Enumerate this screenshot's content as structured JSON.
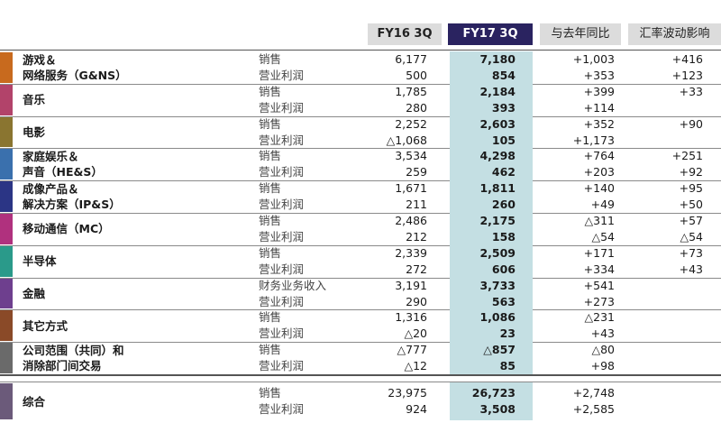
{
  "headers": {
    "fy16": "FY16 3Q",
    "fy17": "FY17 3Q",
    "yoy": "与去年同比",
    "fx": "汇率波动影响"
  },
  "segments": [
    {
      "name": "游戏＆\n网络服务（G&NS）",
      "color": "#c86a1e",
      "rows": [
        {
          "metric": "销售",
          "fy16": "6,177",
          "fy17": "7,180",
          "yoy": "+1,003",
          "fx": "+416"
        },
        {
          "metric": "营业利润",
          "fy16": "500",
          "fy17": "854",
          "yoy": "+353",
          "fx": "+123"
        }
      ]
    },
    {
      "name": "音乐",
      "color": "#b2436a",
      "rows": [
        {
          "metric": "销售",
          "fy16": "1,785",
          "fy17": "2,184",
          "yoy": "+399",
          "fx": "+33"
        },
        {
          "metric": "营业利润",
          "fy16": "280",
          "fy17": "393",
          "yoy": "+114",
          "fx": ""
        }
      ]
    },
    {
      "name": "电影",
      "color": "#8a7530",
      "rows": [
        {
          "metric": "销售",
          "fy16": "2,252",
          "fy17": "2,603",
          "yoy": "+352",
          "fx": "+90"
        },
        {
          "metric": "营业利润",
          "fy16": "△1,068",
          "fy17": "105",
          "yoy": "+1,173",
          "fx": ""
        }
      ]
    },
    {
      "name": "家庭娱乐＆\n声音（HE&S）",
      "color": "#3a70ad",
      "rows": [
        {
          "metric": "销售",
          "fy16": "3,534",
          "fy17": "4,298",
          "yoy": "+764",
          "fx": "+251"
        },
        {
          "metric": "营业利润",
          "fy16": "259",
          "fy17": "462",
          "yoy": "+203",
          "fx": "+92"
        }
      ]
    },
    {
      "name": "成像产品＆\n解决方案（IP&S）",
      "color": "#2b3585",
      "rows": [
        {
          "metric": "销售",
          "fy16": "1,671",
          "fy17": "1,811",
          "yoy": "+140",
          "fx": "+95"
        },
        {
          "metric": "营业利润",
          "fy16": "211",
          "fy17": "260",
          "yoy": "+49",
          "fx": "+50"
        }
      ]
    },
    {
      "name": "移动通信（MC）",
      "color": "#b0317e",
      "rows": [
        {
          "metric": "销售",
          "fy16": "2,486",
          "fy17": "2,175",
          "yoy": "△311",
          "fx": "+57"
        },
        {
          "metric": "营业利润",
          "fy16": "212",
          "fy17": "158",
          "yoy": "△54",
          "fx": "△54"
        }
      ]
    },
    {
      "name": "半导体",
      "color": "#2a9a8a",
      "rows": [
        {
          "metric": "销售",
          "fy16": "2,339",
          "fy17": "2,509",
          "yoy": "+171",
          "fx": "+73"
        },
        {
          "metric": "营业利润",
          "fy16": "272",
          "fy17": "606",
          "yoy": "+334",
          "fx": "+43"
        }
      ]
    },
    {
      "name": "金融",
      "color": "#6e3f8e",
      "rows": [
        {
          "metric": "财务业务收入",
          "fy16": "3,191",
          "fy17": "3,733",
          "yoy": "+541",
          "fx": ""
        },
        {
          "metric": "营业利润",
          "fy16": "290",
          "fy17": "563",
          "yoy": "+273",
          "fx": ""
        }
      ]
    },
    {
      "name": "其它方式",
      "color": "#8a4a28",
      "rows": [
        {
          "metric": "销售",
          "fy16": "1,316",
          "fy17": "1,086",
          "yoy": "△231",
          "fx": ""
        },
        {
          "metric": "营业利润",
          "fy16": "△20",
          "fy17": "23",
          "yoy": "+43",
          "fx": ""
        }
      ]
    },
    {
      "name": "公司范围（共同）和\n消除部门间交易",
      "color": "#6a6a6a",
      "rows": [
        {
          "metric": "销售",
          "fy16": "△777",
          "fy17": "△857",
          "yoy": "△80",
          "fx": ""
        },
        {
          "metric": "营业利润",
          "fy16": "△12",
          "fy17": "85",
          "yoy": "+98",
          "fx": ""
        }
      ]
    },
    {
      "name": "综合",
      "color": "#6b5a7a",
      "rows": [
        {
          "metric": "销售",
          "fy16": "23,975",
          "fy17": "26,723",
          "yoy": "+2,748",
          "fx": ""
        },
        {
          "metric": "营业利润",
          "fy16": "924",
          "fy17": "3,508",
          "yoy": "+2,585",
          "fx": ""
        }
      ]
    }
  ]
}
